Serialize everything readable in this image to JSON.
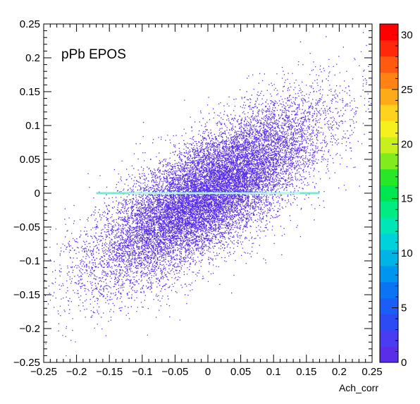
{
  "chart_data": {
    "type": "heatmap",
    "title": "",
    "annotation": "pPb EPOS",
    "xlabel": "Ach_corr",
    "ylabel": "",
    "xlim": [
      -0.25,
      0.25
    ],
    "ylim": [
      -0.25,
      0.25
    ],
    "x_ticks": [
      -0.25,
      -0.2,
      -0.15,
      -0.1,
      -0.05,
      0,
      0.05,
      0.1,
      0.15,
      0.2,
      0.25
    ],
    "x_tick_labels": [
      "−0.25",
      "−0.2",
      "−0.15",
      "−0.1",
      "−0.05",
      "0",
      "0.05",
      "0.1",
      "0.15",
      "0.2",
      "0.25"
    ],
    "y_ticks": [
      -0.25,
      -0.2,
      -0.15,
      -0.1,
      -0.05,
      0,
      0.05,
      0.1,
      0.15,
      0.2,
      0.25
    ],
    "y_tick_labels": [
      "−0.25",
      "−0.2",
      "−0.15",
      "−0.1",
      "−0.05",
      "0",
      "0.05",
      "0.1",
      "0.15",
      "0.2",
      "0.25"
    ],
    "colorbar": {
      "range": [
        0,
        31
      ],
      "ticks": [
        0,
        5,
        10,
        15,
        20,
        25,
        30
      ],
      "tick_labels": [
        "0",
        "5",
        "10",
        "15",
        "20",
        "25",
        "30"
      ],
      "colors": [
        "#5a2de8",
        "#4a3cf0",
        "#2d4bf5",
        "#1a5ef7",
        "#0a74f5",
        "#0096f0",
        "#00b4e6",
        "#00d2dc",
        "#00e6b4",
        "#00eb82",
        "#00e650",
        "#28e628",
        "#82eb1e",
        "#c8f01e",
        "#f5f01e",
        "#ffd21e",
        "#ffaa19",
        "#ff8214",
        "#ff5a0f",
        "#ff280a",
        "#ff0000"
      ]
    },
    "distribution": {
      "description_values": "correlated 2D point density",
      "mean_x": 0,
      "mean_y": 0,
      "slope": 0.57,
      "core_value": 1
    }
  }
}
